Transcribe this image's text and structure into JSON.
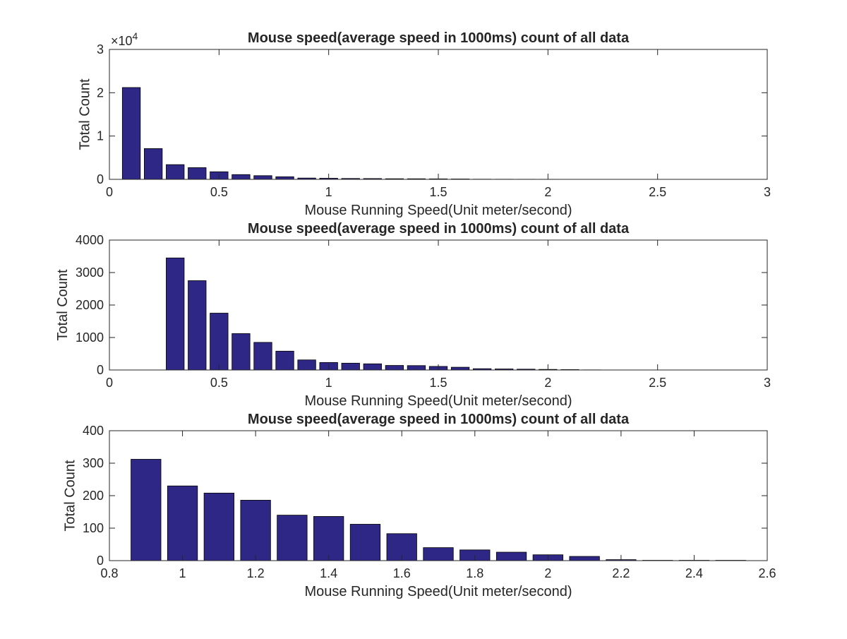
{
  "chart_data": [
    {
      "type": "bar",
      "title": "Mouse speed(average speed in 1000ms) count of all data",
      "xlabel": "Mouse Running Speed(Unit meter/second)",
      "ylabel": "Total Count",
      "xlim": [
        0,
        3
      ],
      "ylim": [
        0,
        30000
      ],
      "x_ticks": [
        "0",
        "0.5",
        "1",
        "1.5",
        "2",
        "2.5",
        "3"
      ],
      "y_ticks": [
        "0",
        "1",
        "2",
        "3"
      ],
      "y_exponent_label": "×10",
      "y_exponent_power": "4",
      "bar_color": "#2f2785",
      "x": [
        0.1,
        0.2,
        0.3,
        0.4,
        0.5,
        0.6,
        0.7,
        0.8,
        0.9,
        1.0,
        1.1,
        1.2,
        1.3,
        1.4,
        1.5,
        1.6,
        1.7,
        1.8,
        1.9,
        2.0,
        2.1,
        2.2,
        2.3,
        2.4,
        2.5
      ],
      "values": [
        21200,
        7100,
        3400,
        2700,
        1750,
        1100,
        850,
        600,
        300,
        250,
        200,
        180,
        140,
        130,
        110,
        85,
        40,
        30,
        25,
        20,
        15,
        5,
        2,
        1,
        1
      ]
    },
    {
      "type": "bar",
      "title": "Mouse speed(average speed in 1000ms) count of all data",
      "xlabel": "Mouse Running Speed(Unit meter/second)",
      "ylabel": "Total Count",
      "xlim": [
        0,
        3
      ],
      "ylim": [
        0,
        4000
      ],
      "x_ticks": [
        "0",
        "0.5",
        "1",
        "1.5",
        "2",
        "2.5",
        "3"
      ],
      "y_ticks": [
        "0",
        "1000",
        "2000",
        "3000",
        "4000"
      ],
      "bar_color": "#2f2785",
      "x": [
        0.3,
        0.4,
        0.5,
        0.6,
        0.7,
        0.8,
        0.9,
        1.0,
        1.1,
        1.2,
        1.3,
        1.4,
        1.5,
        1.6,
        1.7,
        1.8,
        1.9,
        2.0,
        2.1,
        2.2,
        2.3,
        2.4,
        2.5
      ],
      "values": [
        3450,
        2750,
        1750,
        1120,
        850,
        580,
        310,
        230,
        210,
        190,
        140,
        135,
        110,
        85,
        40,
        32,
        25,
        18,
        12,
        4,
        2,
        1,
        1
      ]
    },
    {
      "type": "bar",
      "title": "Mouse speed(average speed in 1000ms) count of all data",
      "xlabel": "Mouse Running Speed(Unit meter/second)",
      "ylabel": "Total Count",
      "xlim": [
        0.8,
        2.6
      ],
      "ylim": [
        0,
        400
      ],
      "x_ticks": [
        "0.8",
        "1",
        "1.2",
        "1.4",
        "1.6",
        "1.8",
        "2",
        "2.2",
        "2.4",
        "2.6"
      ],
      "y_ticks": [
        "0",
        "100",
        "200",
        "300",
        "400"
      ],
      "bar_color": "#2f2785",
      "x": [
        0.9,
        1.0,
        1.1,
        1.2,
        1.3,
        1.4,
        1.5,
        1.6,
        1.7,
        1.8,
        1.9,
        2.0,
        2.1,
        2.2,
        2.3,
        2.4,
        2.5
      ],
      "values": [
        312,
        230,
        208,
        186,
        140,
        136,
        112,
        83,
        40,
        33,
        26,
        18,
        13,
        3,
        1,
        1,
        1
      ]
    }
  ]
}
